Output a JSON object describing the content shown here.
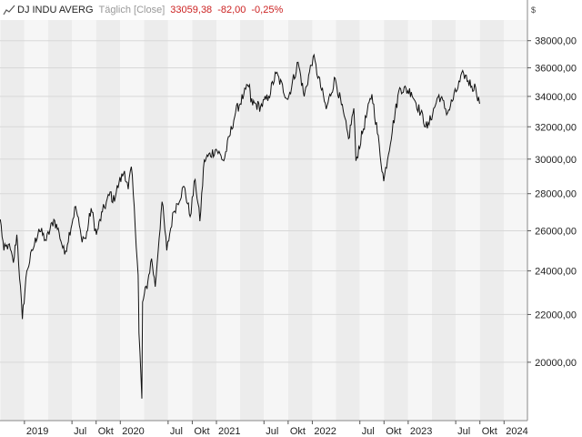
{
  "header": {
    "title": "DJ INDU AVERG",
    "period": "Täglich [Close]",
    "last_price": "33059,38",
    "change": "-82,00",
    "change_pct": "-0,25%",
    "icon": "line-chart-icon"
  },
  "colors": {
    "negative": "#cc2222",
    "line": "#111111",
    "band_dark": "#ececec",
    "band_light": "#f6f6f6",
    "grid": "#d8d8d8"
  },
  "chart_data": {
    "type": "line",
    "currency_label": "$",
    "ylim": [
      17800,
      39600
    ],
    "y_ticks": [
      20000,
      22000,
      24000,
      26000,
      28000,
      30000,
      32000,
      34000,
      36000,
      38000
    ],
    "y_tick_labels": [
      "20000,00",
      "22000,00",
      "24000,00",
      "26000,00",
      "28000,00",
      "30000,00",
      "32000,00",
      "34000,00",
      "36000,00",
      "38000,00"
    ],
    "x_ticks": [
      {
        "label": "2019",
        "date": "2019-01-01"
      },
      {
        "label": "Jul",
        "date": "2019-07-01"
      },
      {
        "label": "Okt",
        "date": "2019-10-01"
      },
      {
        "label": "2020",
        "date": "2020-01-01"
      },
      {
        "label": "Jul",
        "date": "2020-07-01"
      },
      {
        "label": "Okt",
        "date": "2020-10-01"
      },
      {
        "label": "2021",
        "date": "2021-01-01"
      },
      {
        "label": "Jul",
        "date": "2021-07-01"
      },
      {
        "label": "Okt",
        "date": "2021-10-01"
      },
      {
        "label": "2022",
        "date": "2022-01-01"
      },
      {
        "label": "Jul",
        "date": "2022-07-01"
      },
      {
        "label": "Okt",
        "date": "2022-10-01"
      },
      {
        "label": "2023",
        "date": "2023-01-01"
      },
      {
        "label": "Jul",
        "date": "2023-07-01"
      },
      {
        "label": "Okt",
        "date": "2023-10-01"
      },
      {
        "label": "2024",
        "date": "2024-01-01"
      }
    ],
    "xlim": [
      "2018-09-30",
      "2024-03-30"
    ],
    "series": [
      {
        "x": [
          "2018-10-01",
          "2018-10-15",
          "2018-11-01",
          "2018-11-20",
          "2018-12-03",
          "2018-12-24",
          "2019-01-10",
          "2019-02-01",
          "2019-02-25",
          "2019-03-25",
          "2019-04-23",
          "2019-05-13",
          "2019-06-03",
          "2019-07-15",
          "2019-08-05",
          "2019-08-23",
          "2019-09-12",
          "2019-10-02",
          "2019-10-25",
          "2019-11-27",
          "2019-12-03",
          "2019-12-27",
          "2020-01-17",
          "2020-01-31",
          "2020-02-12",
          "2020-03-09",
          "2020-03-12",
          "2020-03-23",
          "2020-03-26",
          "2020-04-15",
          "2020-04-29",
          "2020-05-13",
          "2020-06-08",
          "2020-06-26",
          "2020-07-22",
          "2020-08-31",
          "2020-09-23",
          "2020-10-12",
          "2020-10-30",
          "2020-11-16",
          "2020-12-31",
          "2021-01-29",
          "2021-03-15",
          "2021-04-15",
          "2021-05-07",
          "2021-05-12",
          "2021-06-18",
          "2021-07-19",
          "2021-08-16",
          "2021-09-30",
          "2021-11-08",
          "2021-12-01",
          "2022-01-04",
          "2022-02-23",
          "2022-03-29",
          "2022-05-19",
          "2022-06-08",
          "2022-06-16",
          "2022-08-16",
          "2022-09-30",
          "2022-11-30",
          "2023-01-13",
          "2023-03-15",
          "2023-04-28",
          "2023-05-31",
          "2023-07-31",
          "2023-08-31",
          "2023-09-15",
          "2023-09-30"
        ],
        "values": [
          26600,
          25000,
          25300,
          24400,
          25800,
          21800,
          24000,
          25000,
          26100,
          25500,
          26600,
          25900,
          24800,
          27300,
          25700,
          25600,
          27200,
          25800,
          27000,
          28100,
          27500,
          28600,
          29300,
          28250,
          29550,
          23800,
          21200,
          18600,
          22550,
          23500,
          24600,
          23250,
          27550,
          25000,
          27000,
          28400,
          26750,
          28800,
          26500,
          29950,
          30600,
          29900,
          32950,
          34100,
          34800,
          33600,
          33300,
          34000,
          35600,
          33800,
          36400,
          34000,
          36800,
          33150,
          35250,
          31250,
          33200,
          29900,
          34150,
          28700,
          34600,
          34300,
          31900,
          34100,
          32900,
          35600,
          34700,
          34600,
          33500
        ]
      }
    ]
  }
}
